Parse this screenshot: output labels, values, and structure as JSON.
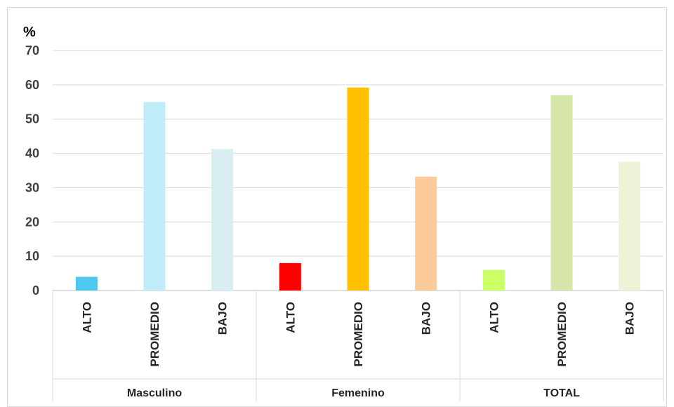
{
  "chart_data": {
    "type": "bar",
    "ylabel": "%",
    "ylim": [
      0,
      70
    ],
    "yticks": [
      0,
      10,
      20,
      30,
      40,
      50,
      60,
      70
    ],
    "grid": true,
    "groups": [
      {
        "name": "Masculino",
        "categories": [
          "ALTO",
          "PROMEDIO",
          "BAJO"
        ],
        "values": [
          4,
          55,
          41.3
        ],
        "colors": [
          "#4fc8f0",
          "#c0ebf9",
          "#d9eef3"
        ]
      },
      {
        "name": "Femenino",
        "categories": [
          "ALTO",
          "PROMEDIO",
          "BAJO"
        ],
        "values": [
          8,
          59.2,
          33.2
        ],
        "colors": [
          "#ff0000",
          "#ffc000",
          "#fdcb99"
        ]
      },
      {
        "name": "TOTAL",
        "categories": [
          "ALTO",
          "PROMEDIO",
          "BAJO"
        ],
        "values": [
          6,
          57,
          37.6
        ],
        "colors": [
          "#ccff66",
          "#d6e5a8",
          "#eef3d7"
        ]
      }
    ]
  }
}
